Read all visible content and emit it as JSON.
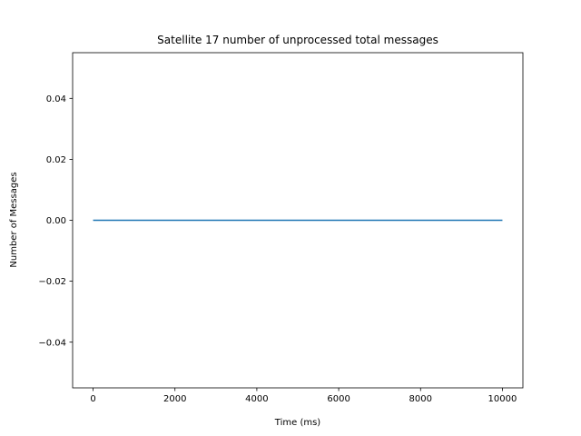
{
  "chart_data": {
    "type": "line",
    "title": "Satellite 17 number of unprocessed total messages",
    "xlabel": "Time (ms)",
    "ylabel": "Number of Messages",
    "xlim": [
      -500,
      10500
    ],
    "ylim": [
      -0.055,
      0.055
    ],
    "x_ticks": [
      0,
      2000,
      4000,
      6000,
      8000,
      10000
    ],
    "x_tick_labels": [
      "0",
      "2000",
      "4000",
      "6000",
      "8000",
      "10000"
    ],
    "y_ticks": [
      -0.04,
      -0.02,
      0.0,
      0.02,
      0.04
    ],
    "y_tick_labels": [
      "−0.04",
      "−0.02",
      "0.00",
      "0.02",
      "0.04"
    ],
    "grid": false,
    "series": [
      {
        "color": "#1f77b4",
        "x": [
          0,
          10000
        ],
        "y": [
          0,
          0
        ]
      }
    ]
  }
}
